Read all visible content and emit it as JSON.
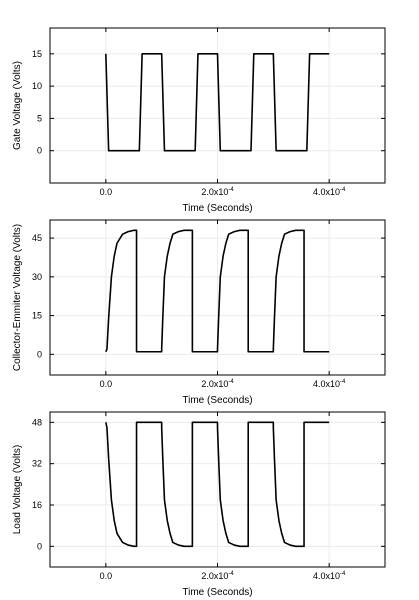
{
  "chart_data": [
    {
      "type": "line",
      "xlabel": "Time (Seconds)",
      "ylabel": "Gate Voltage (Volts)",
      "xlim": [
        -0.0001,
        0.0005
      ],
      "ylim": [
        -5,
        19
      ],
      "x_ticks": [
        {
          "value": 0,
          "mantissa": "0.0",
          "exp": ""
        },
        {
          "value": 0.0002,
          "mantissa": "2.0x10",
          "exp": "-4"
        },
        {
          "value": 0.0004,
          "mantissa": "4.0x10",
          "exp": "-4"
        }
      ],
      "y_ticks": [
        {
          "value": 0,
          "label": "0"
        },
        {
          "value": 5,
          "label": "5"
        },
        {
          "value": 10,
          "label": "10"
        },
        {
          "value": 15,
          "label": "15"
        }
      ],
      "grid": true,
      "series": [
        {
          "color": "#000000",
          "x": [
            0,
            5e-06,
            6e-05,
            6e-05,
            6.5e-05,
            0.0001,
            0.0001,
            0.000105,
            0.00016,
            0.00016,
            0.000165,
            0.0002,
            0.0002,
            0.000205,
            0.00026,
            0.00026,
            0.000265,
            0.0003,
            0.0003,
            0.000305,
            0.00036,
            0.00036,
            0.000365,
            0.0004
          ],
          "y": [
            15,
            0,
            0,
            0,
            15,
            15,
            15,
            0,
            0,
            0,
            15,
            15,
            15,
            0,
            0,
            0,
            15,
            15,
            15,
            0,
            0,
            0,
            15,
            15
          ]
        }
      ]
    },
    {
      "type": "line",
      "xlabel": "Time (Seconds)",
      "ylabel": "Collector-Emmiter Voltage (Volts)",
      "xlim": [
        -0.0001,
        0.0005
      ],
      "ylim": [
        -8,
        52
      ],
      "x_ticks": [
        {
          "value": 0,
          "mantissa": "0.0",
          "exp": ""
        },
        {
          "value": 0.0002,
          "mantissa": "2.0x10",
          "exp": "-4"
        },
        {
          "value": 0.0004,
          "mantissa": "4.0x10",
          "exp": "-4"
        }
      ],
      "y_ticks": [
        {
          "value": 0,
          "label": "0"
        },
        {
          "value": 15,
          "label": "15"
        },
        {
          "value": 30,
          "label": "30"
        },
        {
          "value": 45,
          "label": "45"
        }
      ],
      "grid": true,
      "series": [
        {
          "color": "#000000",
          "x": [
            0,
            2e-06,
            5e-06,
            1e-05,
            1.5e-05,
            2e-05,
            3e-05,
            4e-05,
            5e-05,
            5.5e-05,
            5.5e-05,
            6e-05,
            0.0001,
            0.0001,
            0.000102,
            0.000105,
            0.00011,
            0.000115,
            0.00012,
            0.00013,
            0.00014,
            0.00015,
            0.000155,
            0.000155,
            0.00016,
            0.0002,
            0.0002,
            0.000202,
            0.000205,
            0.00021,
            0.000215,
            0.00022,
            0.00023,
            0.00024,
            0.00025,
            0.000255,
            0.000255,
            0.00026,
            0.0003,
            0.0003,
            0.000302,
            0.000305,
            0.00031,
            0.000315,
            0.00032,
            0.00033,
            0.00034,
            0.00035,
            0.000355,
            0.000355,
            0.00036,
            0.0004
          ],
          "y": [
            1,
            2,
            14,
            30,
            38,
            43,
            46.5,
            47.5,
            48,
            48,
            1,
            1,
            1,
            2,
            14,
            30,
            38,
            43,
            46.5,
            47.5,
            48,
            48,
            48,
            1,
            1,
            1,
            2,
            14,
            30,
            38,
            43,
            46.5,
            47.5,
            48,
            48,
            48,
            1,
            1,
            1,
            2,
            14,
            30,
            38,
            43,
            46.5,
            47.5,
            48,
            48,
            48,
            1,
            1,
            1
          ]
        }
      ]
    },
    {
      "type": "line",
      "xlabel": "Time (Seconds)",
      "ylabel": "Load Voltage (Volts)",
      "xlim": [
        -0.0001,
        0.0005
      ],
      "ylim": [
        -8,
        52
      ],
      "x_ticks": [
        {
          "value": 0,
          "mantissa": "0.0",
          "exp": ""
        },
        {
          "value": 0.0002,
          "mantissa": "2.0x10",
          "exp": "-4"
        },
        {
          "value": 0.0004,
          "mantissa": "4.0x10",
          "exp": "-4"
        }
      ],
      "y_ticks": [
        {
          "value": 0,
          "label": "0"
        },
        {
          "value": 16,
          "label": "16"
        },
        {
          "value": 32,
          "label": "32"
        },
        {
          "value": 48,
          "label": "48"
        }
      ],
      "grid": true,
      "series": [
        {
          "color": "#000000",
          "x": [
            0,
            2e-06,
            5e-06,
            1e-05,
            1.5e-05,
            2e-05,
            3e-05,
            4e-05,
            5e-05,
            5.5e-05,
            5.5e-05,
            6e-05,
            0.0001,
            0.0001,
            0.000102,
            0.000105,
            0.00011,
            0.000115,
            0.00012,
            0.00013,
            0.00014,
            0.00015,
            0.000155,
            0.000155,
            0.00016,
            0.0002,
            0.0002,
            0.000202,
            0.000205,
            0.00021,
            0.000215,
            0.00022,
            0.00023,
            0.00024,
            0.00025,
            0.000255,
            0.000255,
            0.00026,
            0.0003,
            0.0003,
            0.000302,
            0.000305,
            0.00031,
            0.000315,
            0.00032,
            0.00033,
            0.00034,
            0.00035,
            0.000355,
            0.000355,
            0.00036,
            0.0004
          ],
          "y": [
            48,
            46,
            34,
            18,
            10,
            5,
            1.5,
            0.5,
            0,
            0,
            48,
            48,
            48,
            46,
            34,
            18,
            10,
            5,
            1.5,
            0.5,
            0,
            0,
            0,
            48,
            48,
            48,
            46,
            34,
            18,
            10,
            5,
            1.5,
            0.5,
            0,
            0,
            0,
            48,
            48,
            48,
            46,
            34,
            18,
            10,
            5,
            1.5,
            0.5,
            0,
            0,
            0,
            48,
            48,
            48
          ]
        }
      ]
    }
  ]
}
